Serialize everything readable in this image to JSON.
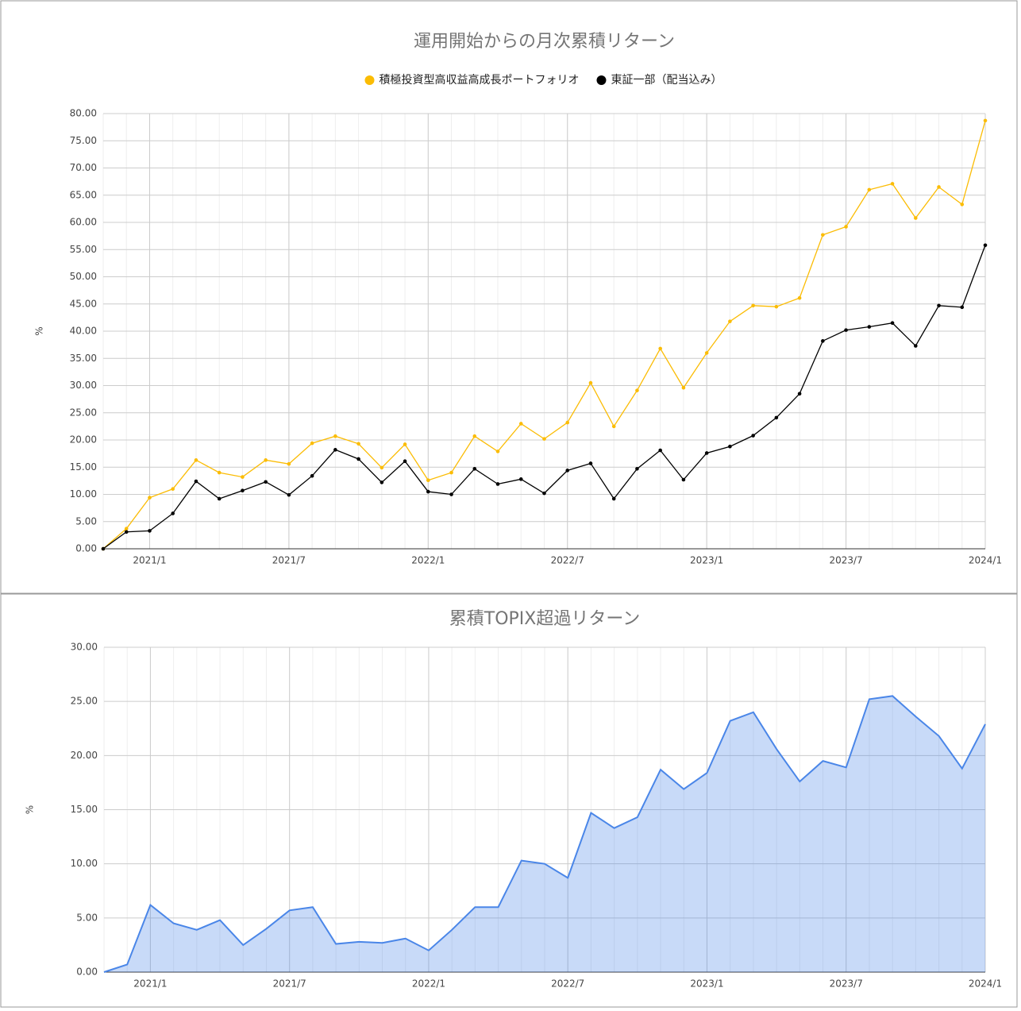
{
  "chart_data": [
    {
      "type": "line",
      "title": "運用開始からの月次累積リターン",
      "ylabel": "%",
      "legend": "top",
      "grid": true,
      "x": [
        "2020/11",
        "2020/12",
        "2021/1",
        "2021/2",
        "2021/3",
        "2021/4",
        "2021/5",
        "2021/6",
        "2021/7",
        "2021/8",
        "2021/9",
        "2021/10",
        "2021/11",
        "2021/12",
        "2022/1",
        "2022/2",
        "2022/3",
        "2022/4",
        "2022/5",
        "2022/6",
        "2022/7",
        "2022/8",
        "2022/9",
        "2022/10",
        "2022/11",
        "2022/12",
        "2023/1",
        "2023/2",
        "2023/3",
        "2023/4",
        "2023/5",
        "2023/6",
        "2023/7",
        "2023/8",
        "2023/9",
        "2023/10",
        "2023/11",
        "2023/12",
        "2024/1"
      ],
      "xticks": [
        "2021/1",
        "2021/7",
        "2022/1",
        "2022/7",
        "2023/1",
        "2023/7",
        "2024/1"
      ],
      "ylim": [
        0,
        80
      ],
      "yticks": [
        {
          "value": 0,
          "label": "0.00"
        },
        {
          "value": 5,
          "label": "5.00"
        },
        {
          "value": 10,
          "label": "10.00"
        },
        {
          "value": 15,
          "label": "15.00"
        },
        {
          "value": 20,
          "label": "20.00"
        },
        {
          "value": 25,
          "label": "25.00"
        },
        {
          "value": 30,
          "label": "30.00"
        },
        {
          "value": 35,
          "label": "35.00"
        },
        {
          "value": 40,
          "label": "40.00"
        },
        {
          "value": 45,
          "label": "45.00"
        },
        {
          "value": 50,
          "label": "50.00"
        },
        {
          "value": 55,
          "label": "55.00"
        },
        {
          "value": 60,
          "label": "60.00"
        },
        {
          "value": 65,
          "label": "65.00"
        },
        {
          "value": 70,
          "label": "70.00"
        },
        {
          "value": 75,
          "label": "75.00"
        },
        {
          "value": 80,
          "label": "80.00"
        }
      ],
      "series": [
        {
          "name": "積極投資型高収益高成長ポートフォリオ",
          "color": "#fbbc04",
          "values": [
            0,
            3.7,
            9.4,
            11.0,
            16.3,
            14.0,
            13.2,
            16.3,
            15.6,
            19.4,
            20.7,
            19.3,
            14.9,
            19.2,
            12.6,
            14.0,
            20.7,
            17.9,
            23.0,
            20.2,
            23.2,
            30.5,
            22.5,
            29.1,
            36.8,
            29.6,
            36.0,
            41.8,
            44.7,
            44.5,
            46.1,
            57.7,
            59.2,
            66.0,
            67.1,
            60.8,
            66.5,
            63.3,
            78.7
          ]
        },
        {
          "name": "東証一部（配当込み）",
          "color": "#000000",
          "values": [
            0,
            3.1,
            3.3,
            6.5,
            12.4,
            9.2,
            10.7,
            12.3,
            9.9,
            13.4,
            18.2,
            16.5,
            12.2,
            16.1,
            10.5,
            10.0,
            14.7,
            11.9,
            12.8,
            10.2,
            14.4,
            15.7,
            9.2,
            14.7,
            18.1,
            12.7,
            17.6,
            18.8,
            20.8,
            24.1,
            28.5,
            38.2,
            40.2,
            40.8,
            41.5,
            37.3,
            44.7,
            44.4,
            55.8
          ]
        }
      ]
    },
    {
      "type": "area",
      "title": "累積TOPIX超過リターン",
      "ylabel": "%",
      "grid": true,
      "x": [
        "2020/11",
        "2020/12",
        "2021/1",
        "2021/2",
        "2021/3",
        "2021/4",
        "2021/5",
        "2021/6",
        "2021/7",
        "2021/8",
        "2021/9",
        "2021/10",
        "2021/11",
        "2021/12",
        "2022/1",
        "2022/2",
        "2022/3",
        "2022/4",
        "2022/5",
        "2022/6",
        "2022/7",
        "2022/8",
        "2022/9",
        "2022/10",
        "2022/11",
        "2022/12",
        "2023/1",
        "2023/2",
        "2023/3",
        "2023/4",
        "2023/5",
        "2023/6",
        "2023/7",
        "2023/8",
        "2023/9",
        "2023/10",
        "2023/11",
        "2023/12",
        "2024/1"
      ],
      "xticks": [
        "2021/1",
        "2021/7",
        "2022/1",
        "2022/7",
        "2023/1",
        "2023/7",
        "2024/1"
      ],
      "ylim": [
        0,
        30
      ],
      "yticks": [
        {
          "value": 0,
          "label": "0.00"
        },
        {
          "value": 5,
          "label": "5.00"
        },
        {
          "value": 10,
          "label": "10.00"
        },
        {
          "value": 15,
          "label": "15.00"
        },
        {
          "value": 20,
          "label": "20.00"
        },
        {
          "value": 25,
          "label": "25.00"
        },
        {
          "value": 30,
          "label": "30.00"
        }
      ],
      "series": [
        {
          "color": "#4a86e8",
          "values": [
            0,
            0.7,
            6.2,
            4.5,
            3.9,
            4.8,
            2.5,
            4.0,
            5.7,
            6.0,
            2.6,
            2.8,
            2.7,
            3.1,
            2.0,
            3.9,
            6.0,
            6.0,
            10.3,
            10.0,
            8.7,
            14.7,
            13.3,
            14.3,
            18.7,
            16.9,
            18.4,
            23.2,
            24.0,
            20.6,
            17.6,
            19.5,
            18.9,
            25.2,
            25.5,
            23.6,
            21.8,
            18.8,
            22.9
          ]
        }
      ]
    }
  ]
}
